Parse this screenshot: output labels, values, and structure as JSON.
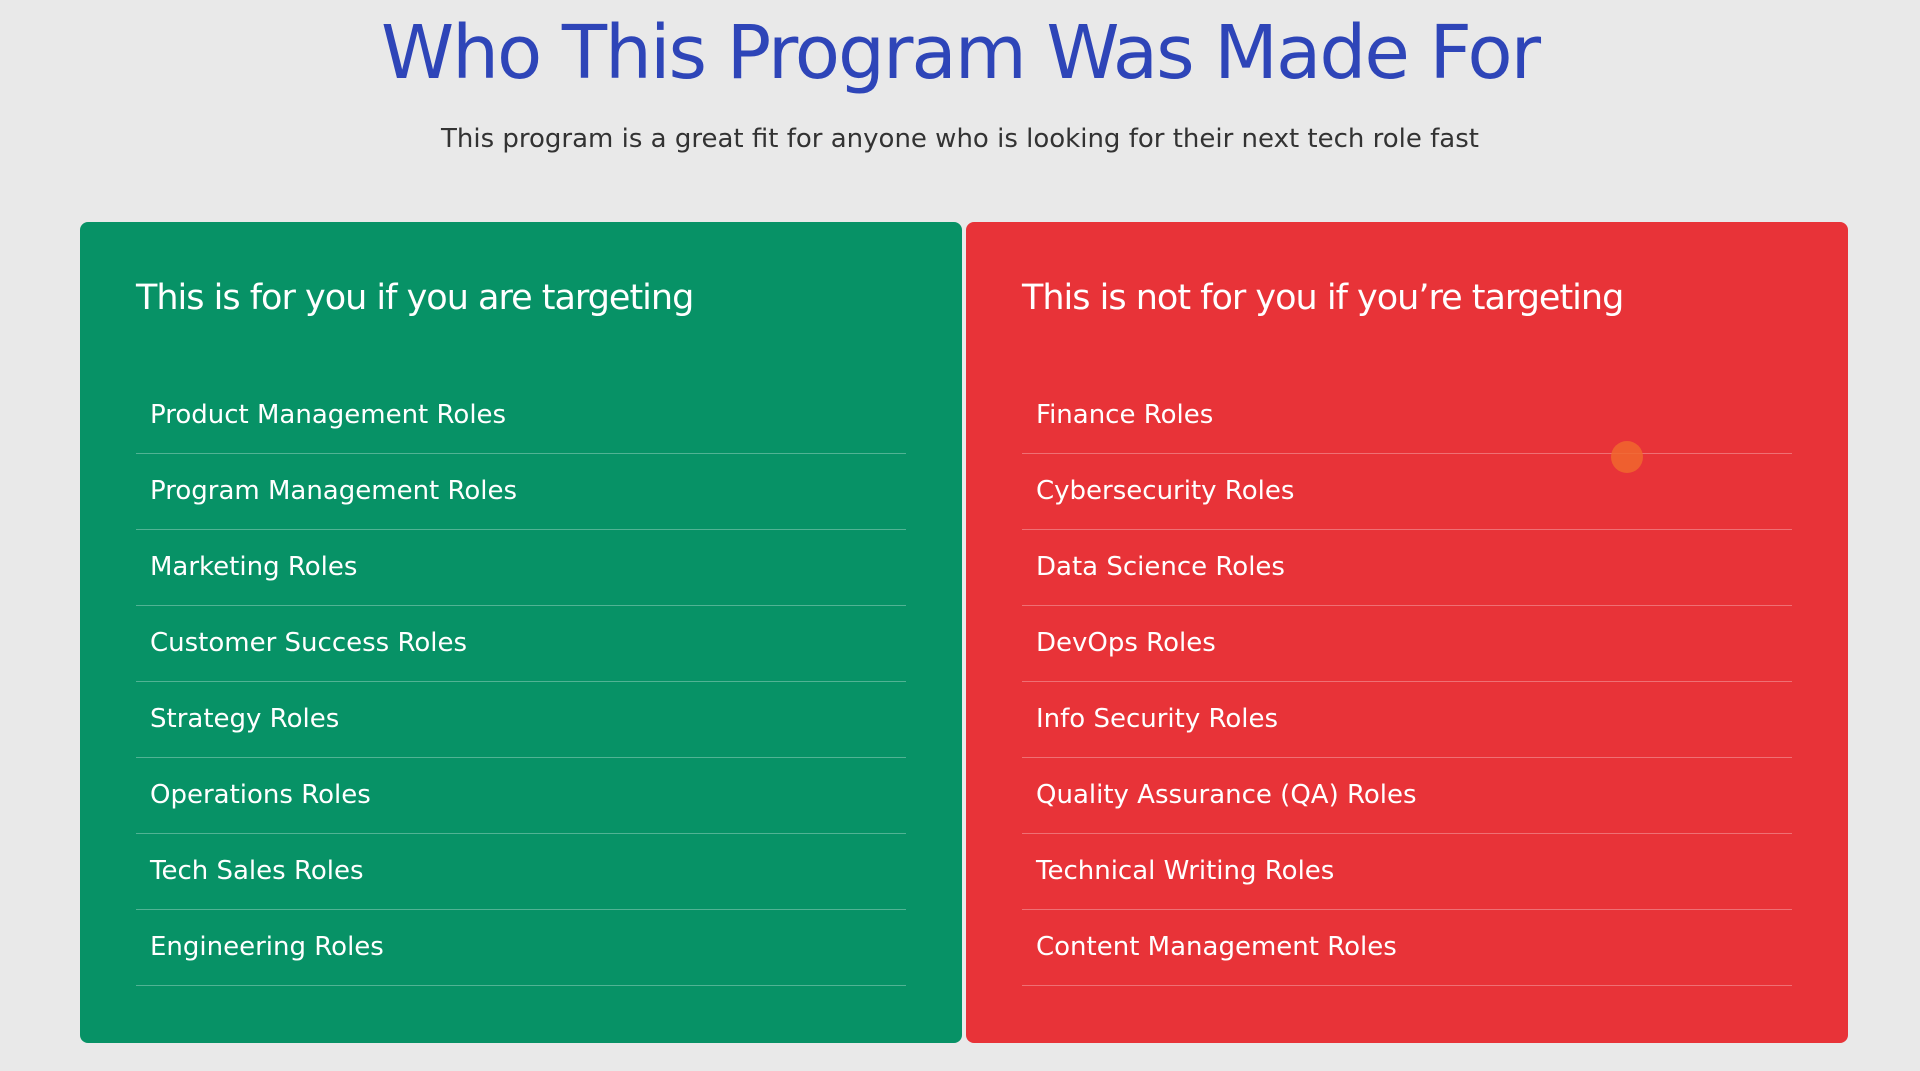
{
  "header": {
    "title": "Who This Program Was Made For",
    "subtitle": "This program is a great fit for anyone who is looking for their next tech role fast"
  },
  "columns": [
    {
      "heading": "This is for you if you are targeting",
      "items": [
        "Product Management Roles",
        "Program Management Roles",
        "Marketing Roles",
        "Customer Success Roles",
        "Strategy Roles",
        "Operations Roles",
        "Tech Sales Roles",
        "Engineering Roles"
      ]
    },
    {
      "heading": "This is not for you if you’re targeting",
      "items": [
        "Finance Roles",
        "Cybersecurity Roles",
        "Data Science Roles",
        "DevOps Roles",
        "Info Security Roles",
        "Quality Assurance (QA) Roles",
        "Technical Writing Roles",
        "Content Management Roles"
      ]
    }
  ]
}
